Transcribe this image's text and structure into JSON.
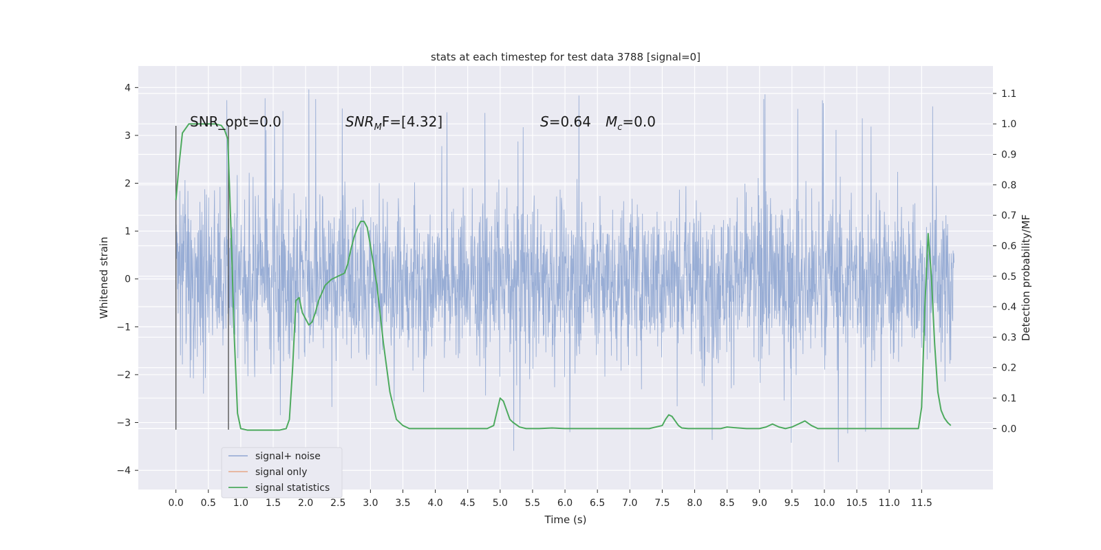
{
  "chart_data": {
    "type": "line",
    "title": "stats at each timestep for test data 3788 [signal=0]",
    "xlabel": "Time (s)",
    "ylabel": "Whitened strain",
    "ylabel_right": "Detection probability/MF",
    "xlim": [
      -0.58,
      12.6
    ],
    "ylim": [
      -4.4,
      4.45
    ],
    "ylim_right": [
      -0.2,
      1.19
    ],
    "xticks": [
      "0.0",
      "0.5",
      "1.0",
      "1.5",
      "2.0",
      "2.5",
      "3.0",
      "3.5",
      "4.0",
      "4.5",
      "5.0",
      "5.5",
      "6.0",
      "6.5",
      "7.0",
      "7.5",
      "8.0",
      "8.5",
      "9.0",
      "9.5",
      "10.0",
      "10.5",
      "11.0",
      "11.5"
    ],
    "yticks_left": [
      "4",
      "3",
      "2",
      "1",
      "0",
      "−1",
      "−2",
      "−3",
      "−4"
    ],
    "yticks_right": [
      "1.1",
      "1.0",
      "0.9",
      "0.8",
      "0.7",
      "0.6",
      "0.5",
      "0.4",
      "0.3",
      "0.2",
      "0.1",
      "0.0"
    ],
    "annotations": {
      "snr_opt": "SNR_opt=0.0",
      "snr_mf_base": "SNR",
      "snr_mf_sub": "M",
      "snr_mf_rest": "F=[4.32]",
      "s_label": "S",
      "s_value": "=0.64",
      "mc_base": "M",
      "mc_sub": "c",
      "mc_value": "=0.0"
    },
    "legend_position": "lower-left",
    "series": [
      {
        "name": "signal+ noise",
        "color": "#8fa6d1",
        "x_range": [
          0.0,
          12.0
        ],
        "amplitude": "noise approx ±2.5, peaks up to 4.1 / down to −4.0"
      },
      {
        "name": "signal only",
        "color": "#e6a888",
        "values": []
      },
      {
        "name": "signal statistics",
        "color": "#4daa5e",
        "x": [
          0.0,
          0.05,
          0.1,
          0.2,
          0.3,
          0.4,
          0.5,
          0.6,
          0.7,
          0.75,
          0.8,
          0.85,
          0.9,
          0.95,
          1.0,
          1.1,
          1.2,
          1.4,
          1.6,
          1.7,
          1.75,
          1.8,
          1.85,
          1.9,
          1.95,
          2.0,
          2.05,
          2.1,
          2.15,
          2.2,
          2.3,
          2.4,
          2.5,
          2.6,
          2.65,
          2.7,
          2.75,
          2.8,
          2.85,
          2.9,
          2.95,
          3.0,
          3.1,
          3.2,
          3.3,
          3.4,
          3.5,
          3.6,
          3.8,
          4.0,
          4.5,
          4.8,
          4.9,
          5.0,
          5.05,
          5.1,
          5.15,
          5.2,
          5.3,
          5.4,
          5.6,
          5.8,
          6.0,
          6.5,
          7.0,
          7.3,
          7.5,
          7.55,
          7.6,
          7.65,
          7.7,
          7.75,
          7.8,
          7.9,
          8.0,
          8.4,
          8.5,
          8.6,
          8.8,
          9.0,
          9.1,
          9.2,
          9.3,
          9.4,
          9.5,
          9.6,
          9.7,
          9.8,
          9.9,
          10.0,
          10.2,
          10.5,
          11.0,
          11.4,
          11.45,
          11.5,
          11.55,
          11.6,
          11.65,
          11.7,
          11.75,
          11.8,
          11.85,
          11.9,
          11.95
        ],
        "values": [
          0.75,
          0.87,
          0.97,
          1.0,
          1.0,
          1.0,
          1.0,
          1.0,
          0.995,
          0.98,
          0.95,
          0.65,
          0.3,
          0.05,
          0.0,
          -0.005,
          -0.005,
          -0.005,
          -0.005,
          0.0,
          0.03,
          0.2,
          0.42,
          0.43,
          0.38,
          0.36,
          0.34,
          0.35,
          0.38,
          0.42,
          0.47,
          0.49,
          0.5,
          0.51,
          0.54,
          0.59,
          0.63,
          0.66,
          0.68,
          0.68,
          0.66,
          0.6,
          0.47,
          0.28,
          0.12,
          0.03,
          0.01,
          0.0,
          0.0,
          0.0,
          0.0,
          0.0,
          0.01,
          0.1,
          0.09,
          0.06,
          0.03,
          0.02,
          0.005,
          0.0,
          0.0,
          0.002,
          0.0,
          0.0,
          0.0,
          0.0,
          0.01,
          0.03,
          0.045,
          0.04,
          0.025,
          0.01,
          0.002,
          0.0,
          0.0,
          0.0,
          0.005,
          0.003,
          0.0,
          0.0,
          0.005,
          0.015,
          0.005,
          0.0,
          0.005,
          0.015,
          0.025,
          0.01,
          0.0,
          0.0,
          0.0,
          0.0,
          0.0,
          0.0,
          0.0,
          0.07,
          0.4,
          0.64,
          0.5,
          0.28,
          0.12,
          0.06,
          0.035,
          0.02,
          0.01
        ]
      }
    ]
  }
}
